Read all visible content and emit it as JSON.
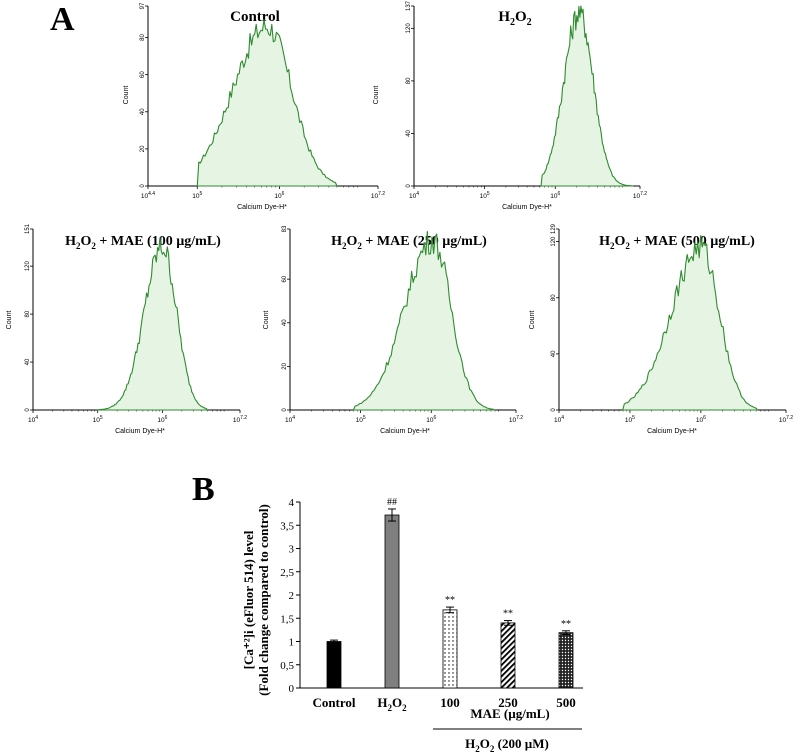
{
  "panel_labels": {
    "a": "A",
    "b": "B"
  },
  "histogram_common": {
    "xlabel": "Calcium Dye-H*",
    "ylabel": "Count",
    "x_ticks": [
      {
        "exp": "4",
        "val": 4
      },
      {
        "exp": "5",
        "val": 5
      },
      {
        "exp": "6",
        "val": 6
      },
      {
        "exp": "7.2",
        "val": 7.2
      }
    ],
    "line_color": "#2e8b2e",
    "fill_color": "#e6f4e4"
  },
  "chart_data": [
    {
      "type": "area",
      "title": "Control",
      "xlabel": "Calcium Dye-H*",
      "ylabel": "Count",
      "x_scale": "log10",
      "x_range_log10": [
        4.4,
        7.2
      ],
      "x_first_tick_label": "4.4",
      "ylim": [
        0,
        97
      ],
      "y_ticks": [
        0,
        20,
        40,
        60,
        80,
        97
      ],
      "profile": {
        "start": 5.0,
        "end": 6.7,
        "center": 5.85,
        "sigma_left": 0.42,
        "sigma_right": 0.3,
        "peak": 86
      }
    },
    {
      "type": "area",
      "title": "H2O2",
      "xlabel": "Calcium Dye-H*",
      "ylabel": "Count",
      "x_scale": "log10",
      "x_range_log10": [
        4.0,
        7.2
      ],
      "ylim": [
        0,
        137
      ],
      "y_ticks": [
        0,
        40,
        80,
        120,
        137
      ],
      "profile": {
        "start": 5.8,
        "end": 7.1,
        "center": 6.34,
        "sigma_left": 0.22,
        "sigma_right": 0.2,
        "peak": 132
      }
    },
    {
      "type": "area",
      "title": "H2O2 + MAE (100 µg/mL)",
      "xlabel": "Calcium Dye-H*",
      "ylabel": "Count",
      "x_scale": "log10",
      "x_range_log10": [
        4.0,
        7.2
      ],
      "ylim": [
        0,
        151
      ],
      "y_ticks": [
        0,
        40,
        80,
        120,
        151
      ],
      "profile": {
        "start": 5.0,
        "end": 6.7,
        "center": 6.0,
        "sigma_left": 0.28,
        "sigma_right": 0.22,
        "peak": 136
      }
    },
    {
      "type": "area",
      "title": "H2O2 + MAE (250 µg/mL)",
      "xlabel": "Calcium Dye-H*",
      "ylabel": "Count",
      "x_scale": "log10",
      "x_range_log10": [
        4.0,
        7.2
      ],
      "ylim": [
        0,
        83
      ],
      "y_ticks": [
        0,
        20,
        40,
        60,
        83
      ],
      "profile": {
        "start": 4.9,
        "end": 6.9,
        "center": 6.02,
        "sigma_left": 0.4,
        "sigma_right": 0.26,
        "peak": 78
      }
    },
    {
      "type": "area",
      "title": "H2O2 + MAE (500 µg/mL)",
      "xlabel": "Calcium Dye-H*",
      "ylabel": "Count",
      "x_scale": "log10",
      "x_range_log10": [
        4.0,
        7.2
      ],
      "ylim": [
        0,
        129
      ],
      "y_ticks": [
        0,
        40,
        80,
        120,
        129
      ],
      "profile": {
        "start": 4.9,
        "end": 6.8,
        "center": 6.0,
        "sigma_left": 0.42,
        "sigma_right": 0.26,
        "peak": 116
      }
    },
    {
      "type": "bar",
      "title": "",
      "ylabel_line1": "[Ca⁺²]i (eFluor 514) level",
      "ylabel_line2": "(Fold change compared to control)",
      "ylim": [
        0,
        4
      ],
      "y_ticks": [
        {
          "v": 0,
          "label": "0"
        },
        {
          "v": 0.5,
          "label": "0,5"
        },
        {
          "v": 1,
          "label": "1"
        },
        {
          "v": 1.5,
          "label": "1,5"
        },
        {
          "v": 2,
          "label": "2"
        },
        {
          "v": 2.5,
          "label": "2,5"
        },
        {
          "v": 3,
          "label": "3"
        },
        {
          "v": 3.5,
          "label": "3,5"
        },
        {
          "v": 4,
          "label": "4"
        }
      ],
      "categories": [
        "Control",
        "H2O2",
        "100",
        "250",
        "500"
      ],
      "values": [
        1.0,
        3.72,
        1.68,
        1.4,
        1.19
      ],
      "errors": [
        0.03,
        0.13,
        0.06,
        0.05,
        0.04
      ],
      "significance": [
        "",
        "##",
        "**",
        "**",
        "**"
      ],
      "fill_styles": [
        "solid-black",
        "solid-gray",
        "dots",
        "diagonal",
        "dense-dots"
      ],
      "mae_label": "MAE  (µg/mL)",
      "h2o2_group_label": "H2O2 (200 µM)"
    }
  ]
}
